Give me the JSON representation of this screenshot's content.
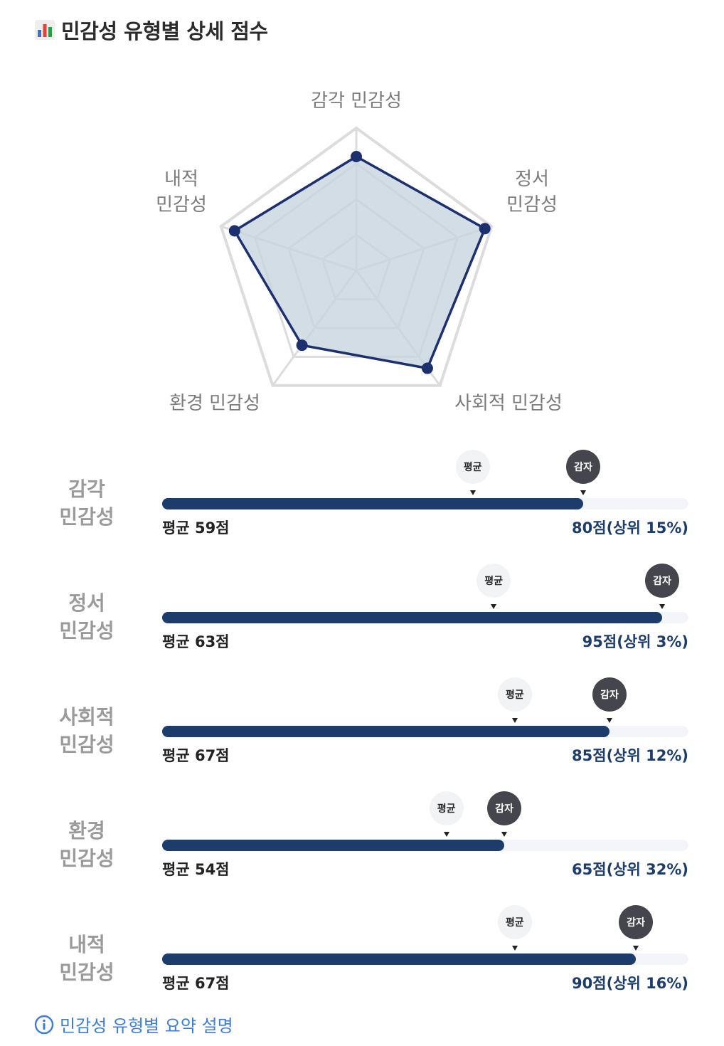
{
  "header": {
    "title": "민감성 유형별 상세 점수",
    "icon": "bar-chart-icon"
  },
  "chart_data": [
    {
      "type": "radar",
      "axes": [
        "감각 민감성",
        "정서 민감성",
        "사회적 민감성",
        "환경 민감성",
        "내적 민감성"
      ],
      "values": [
        80,
        95,
        85,
        65,
        90
      ],
      "range": [
        0,
        100
      ],
      "grid": true,
      "colors": {
        "line": "#1c2f6e",
        "fill": "#c8d4e0",
        "grid": "#dcdcdc"
      }
    },
    {
      "type": "bar",
      "orientation": "horizontal",
      "range": [
        0,
        100
      ],
      "marker_labels": {
        "average": "평균",
        "user": "감자"
      },
      "rows": [
        {
          "label": "감각\n민감성",
          "score": 80,
          "average": 59,
          "average_text": "평균 59점",
          "score_text": "80점(상위 15%)"
        },
        {
          "label": "정서\n민감성",
          "score": 95,
          "average": 63,
          "average_text": "평균 63점",
          "score_text": "95점(상위 3%)"
        },
        {
          "label": "사회적\n민감성",
          "score": 85,
          "average": 67,
          "average_text": "평균 67점",
          "score_text": "85점(상위 12%)"
        },
        {
          "label": "환경\n민감성",
          "score": 65,
          "average": 54,
          "average_text": "평균 54점",
          "score_text": "65점(상위 32%)"
        },
        {
          "label": "내적\n민감성",
          "score": 90,
          "average": 67,
          "average_text": "평균 67점",
          "score_text": "90점(상위 16%)"
        }
      ],
      "colors": {
        "bar": "#1c3d6c",
        "track": "#f3f5f8",
        "user_marker": "#45464d",
        "average_marker": "#f2f3f5"
      }
    }
  ],
  "footer": {
    "link_text": "민감성 유형별 요약 설명",
    "icon": "info-icon",
    "color": "#3b7dd8"
  }
}
